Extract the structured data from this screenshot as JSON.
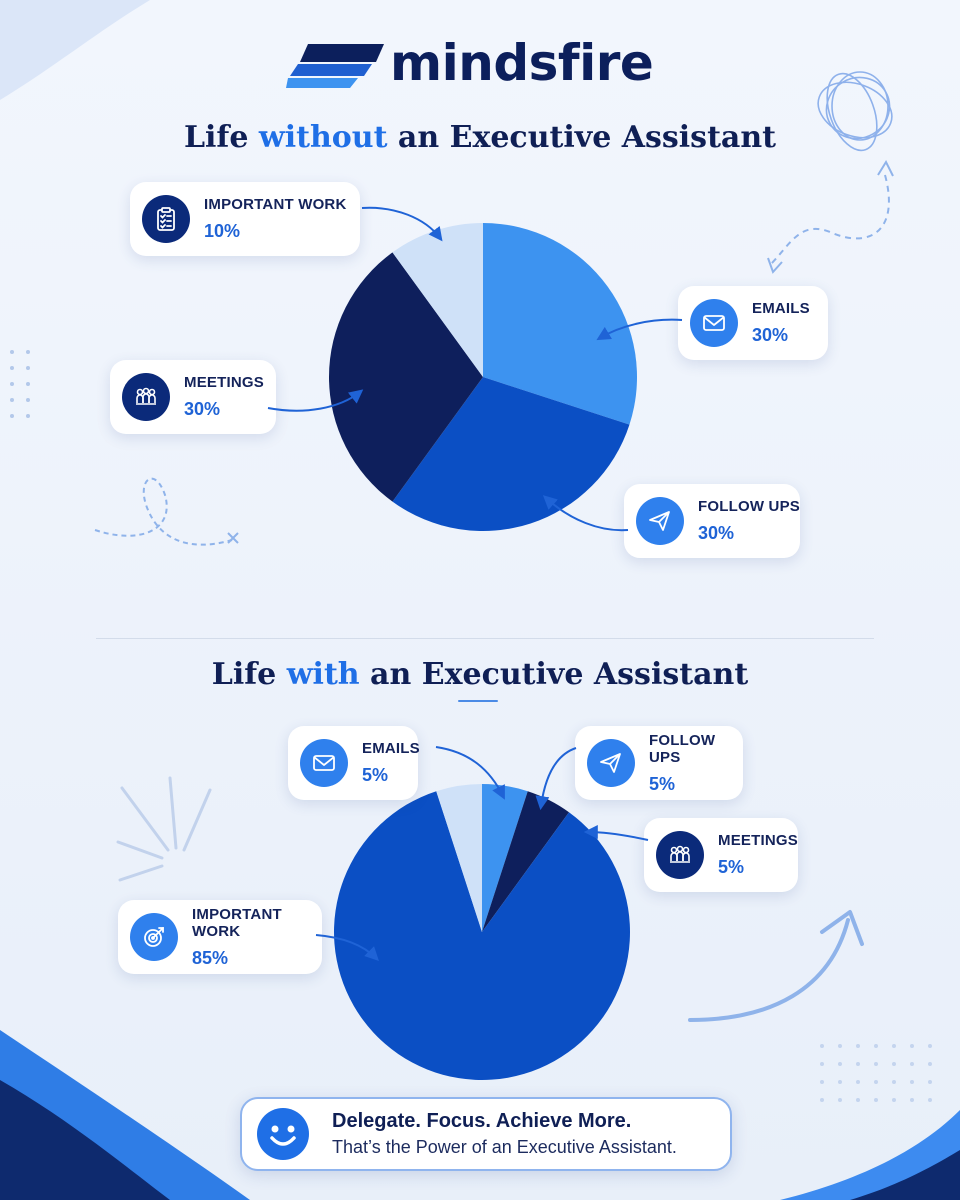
{
  "brand": {
    "name": "mindsfire"
  },
  "section_without": {
    "title_pre": "Life ",
    "title_highlight": "without",
    "title_post": " an Executive Assistant",
    "callouts": {
      "important_work": {
        "label": "IMPORTANT WORK",
        "value": "10%"
      },
      "emails": {
        "label": "EMAILS",
        "value": "30%"
      },
      "meetings": {
        "label": "MEETINGS",
        "value": "30%"
      },
      "follow_ups": {
        "label": "FOLLOW UPS",
        "value": "30%"
      }
    }
  },
  "section_with": {
    "title_pre": "Life ",
    "title_highlight": "with",
    "title_post": " an Executive Assistant",
    "callouts": {
      "emails": {
        "label": "EMAILS",
        "value": "5%"
      },
      "follow_ups": {
        "label": "FOLLOW UPS",
        "value": "5%"
      },
      "meetings": {
        "label": "MEETINGS",
        "value": "5%"
      },
      "important_work": {
        "label": "IMPORTANT WORK",
        "value": "85%"
      }
    }
  },
  "banner": {
    "headline": "Delegate. Focus. Achieve More.",
    "subline": "That’s the Power of an Executive Assistant."
  },
  "icons": [
    "clipboard-icon",
    "envelope-icon",
    "people-icon",
    "paper-plane-icon",
    "target-icon",
    "smiley-icon"
  ],
  "chart_data": [
    {
      "type": "pie",
      "title": "Life without an Executive Assistant",
      "slices": [
        {
          "label": "EMAILS",
          "value": 30,
          "color": "#3d93f0"
        },
        {
          "label": "FOLLOW UPS",
          "value": 30,
          "color": "#0b4fc4"
        },
        {
          "label": "MEETINGS",
          "value": 30,
          "color": "#0e1f5c"
        },
        {
          "label": "IMPORTANT WORK",
          "value": 10,
          "color": "#cfe1f8"
        }
      ]
    },
    {
      "type": "pie",
      "title": "Life with an Executive Assistant",
      "slices": [
        {
          "label": "FOLLOW UPS",
          "value": 5,
          "color": "#3d93f0"
        },
        {
          "label": "MEETINGS",
          "value": 5,
          "color": "#0e1f5c"
        },
        {
          "label": "IMPORTANT WORK",
          "value": 85,
          "color": "#0b4fc4"
        },
        {
          "label": "EMAILS",
          "value": 5,
          "color": "#cfe1f8"
        }
      ]
    }
  ]
}
